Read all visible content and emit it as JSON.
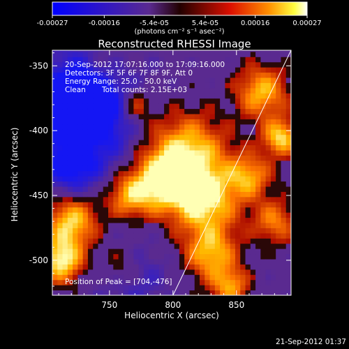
{
  "chart_data": {
    "type": "heatmap",
    "title": "Reconstructed RHESSI Image",
    "xlabel": "Heliocentric X (arcsec)",
    "ylabel": "Heliocentric Y (arcsec)",
    "xlim": [
      705,
      893
    ],
    "ylim": [
      -527,
      -338
    ],
    "x_ticks": [
      750,
      800,
      850
    ],
    "y_ticks": [
      -500,
      -450,
      -400,
      -350
    ],
    "grid": false,
    "colorbar": {
      "placement": "top",
      "min": -0.00027,
      "max": 0.00027,
      "tick_values": [
        -0.00027,
        -0.00016,
        -5.4e-05,
        5.4e-05,
        0.00016,
        0.00027
      ],
      "tick_labels": [
        "-0.00027",
        "-0.00016",
        "-5.4e-05",
        "5.4e-05",
        "0.00016",
        "0.00027"
      ],
      "unit_label": "(photons cm⁻² s⁻¹ asec⁻²)"
    },
    "annotations": {
      "time_range": "20-Sep-2012 17:07:16.000 to 17:09:16.000",
      "detectors": "Detectors: 3F 5F 6F 7F 8F 9F, Att 0",
      "energy_range": "Energy Range: 25.0 - 50.0 keV",
      "algorithm": "Clean",
      "total_counts": "Total counts: 2.15E+03",
      "peak": "Position of Peak = [704,-476]"
    },
    "limb_line": {
      "x": [
        800,
        893
      ],
      "y": [
        -527,
        -338
      ]
    },
    "pixel_size_arcsec": 4,
    "colors": {
      "negative": "#1010ff",
      "zero": "#5a2a90",
      "positive_low": "#cc0000",
      "positive_high": "#ffff00",
      "max": "#ffffff"
    }
  },
  "footer": {
    "timestamp": "21-Sep-2012 01:37"
  }
}
